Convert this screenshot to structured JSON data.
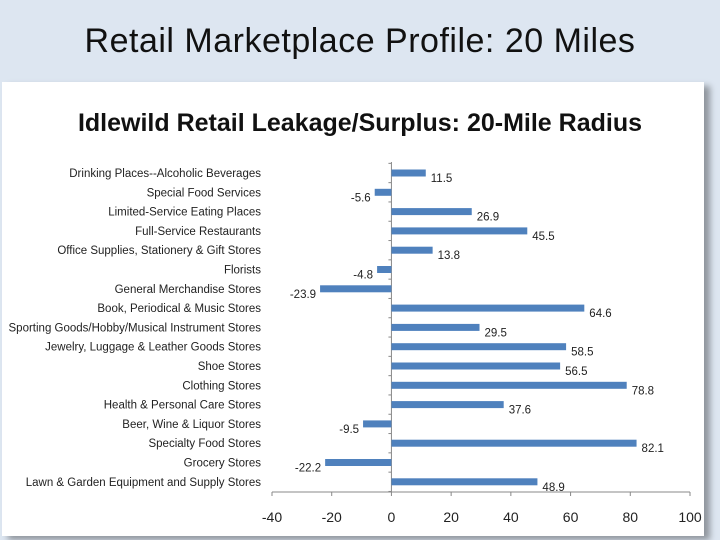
{
  "slide": {
    "title": "Retail Marketplace Profile: 20 Miles"
  },
  "chart_data": {
    "type": "bar",
    "orientation": "horizontal",
    "title": "Idlewild Retail Leakage/Surplus: 20-Mile Radius",
    "xlabel": "",
    "ylabel": "",
    "xlim": [
      -40,
      100
    ],
    "ticks": [
      -40,
      -20,
      0,
      20,
      40,
      60,
      80,
      100
    ],
    "grid": false,
    "bar_color": "#4f81bd",
    "categories": [
      "Drinking Places--Alcoholic Beverages",
      "Special Food Services",
      "Limited-Service Eating Places",
      "Full-Service Restaurants",
      "Office Supplies, Stationery & Gift Stores",
      "Florists",
      "General Merchandise Stores",
      "Book, Periodical & Music Stores",
      "Sporting Goods/Hobby/Musical Instrument Stores",
      "Jewelry, Luggage & Leather Goods Stores",
      "Shoe Stores",
      "Clothing Stores",
      "Health & Personal Care Stores",
      "Beer, Wine & Liquor Stores",
      "Specialty Food Stores",
      "Grocery Stores",
      "Lawn & Garden Equipment and Supply Stores"
    ],
    "values": [
      11.5,
      -5.6,
      26.9,
      45.5,
      13.8,
      -4.8,
      -23.9,
      64.6,
      29.5,
      58.5,
      56.5,
      78.8,
      37.6,
      -9.5,
      82.1,
      -22.2,
      48.9
    ],
    "value_labels": [
      "11.5",
      "-5.6",
      "26.9",
      "45.5",
      "13.8",
      "-4.8",
      "-23.9",
      "64.6",
      "29.5",
      "58.5",
      "56.5",
      "78.8",
      "37.6",
      "-9.5",
      "82.1",
      "-22.2",
      "48.9"
    ]
  }
}
